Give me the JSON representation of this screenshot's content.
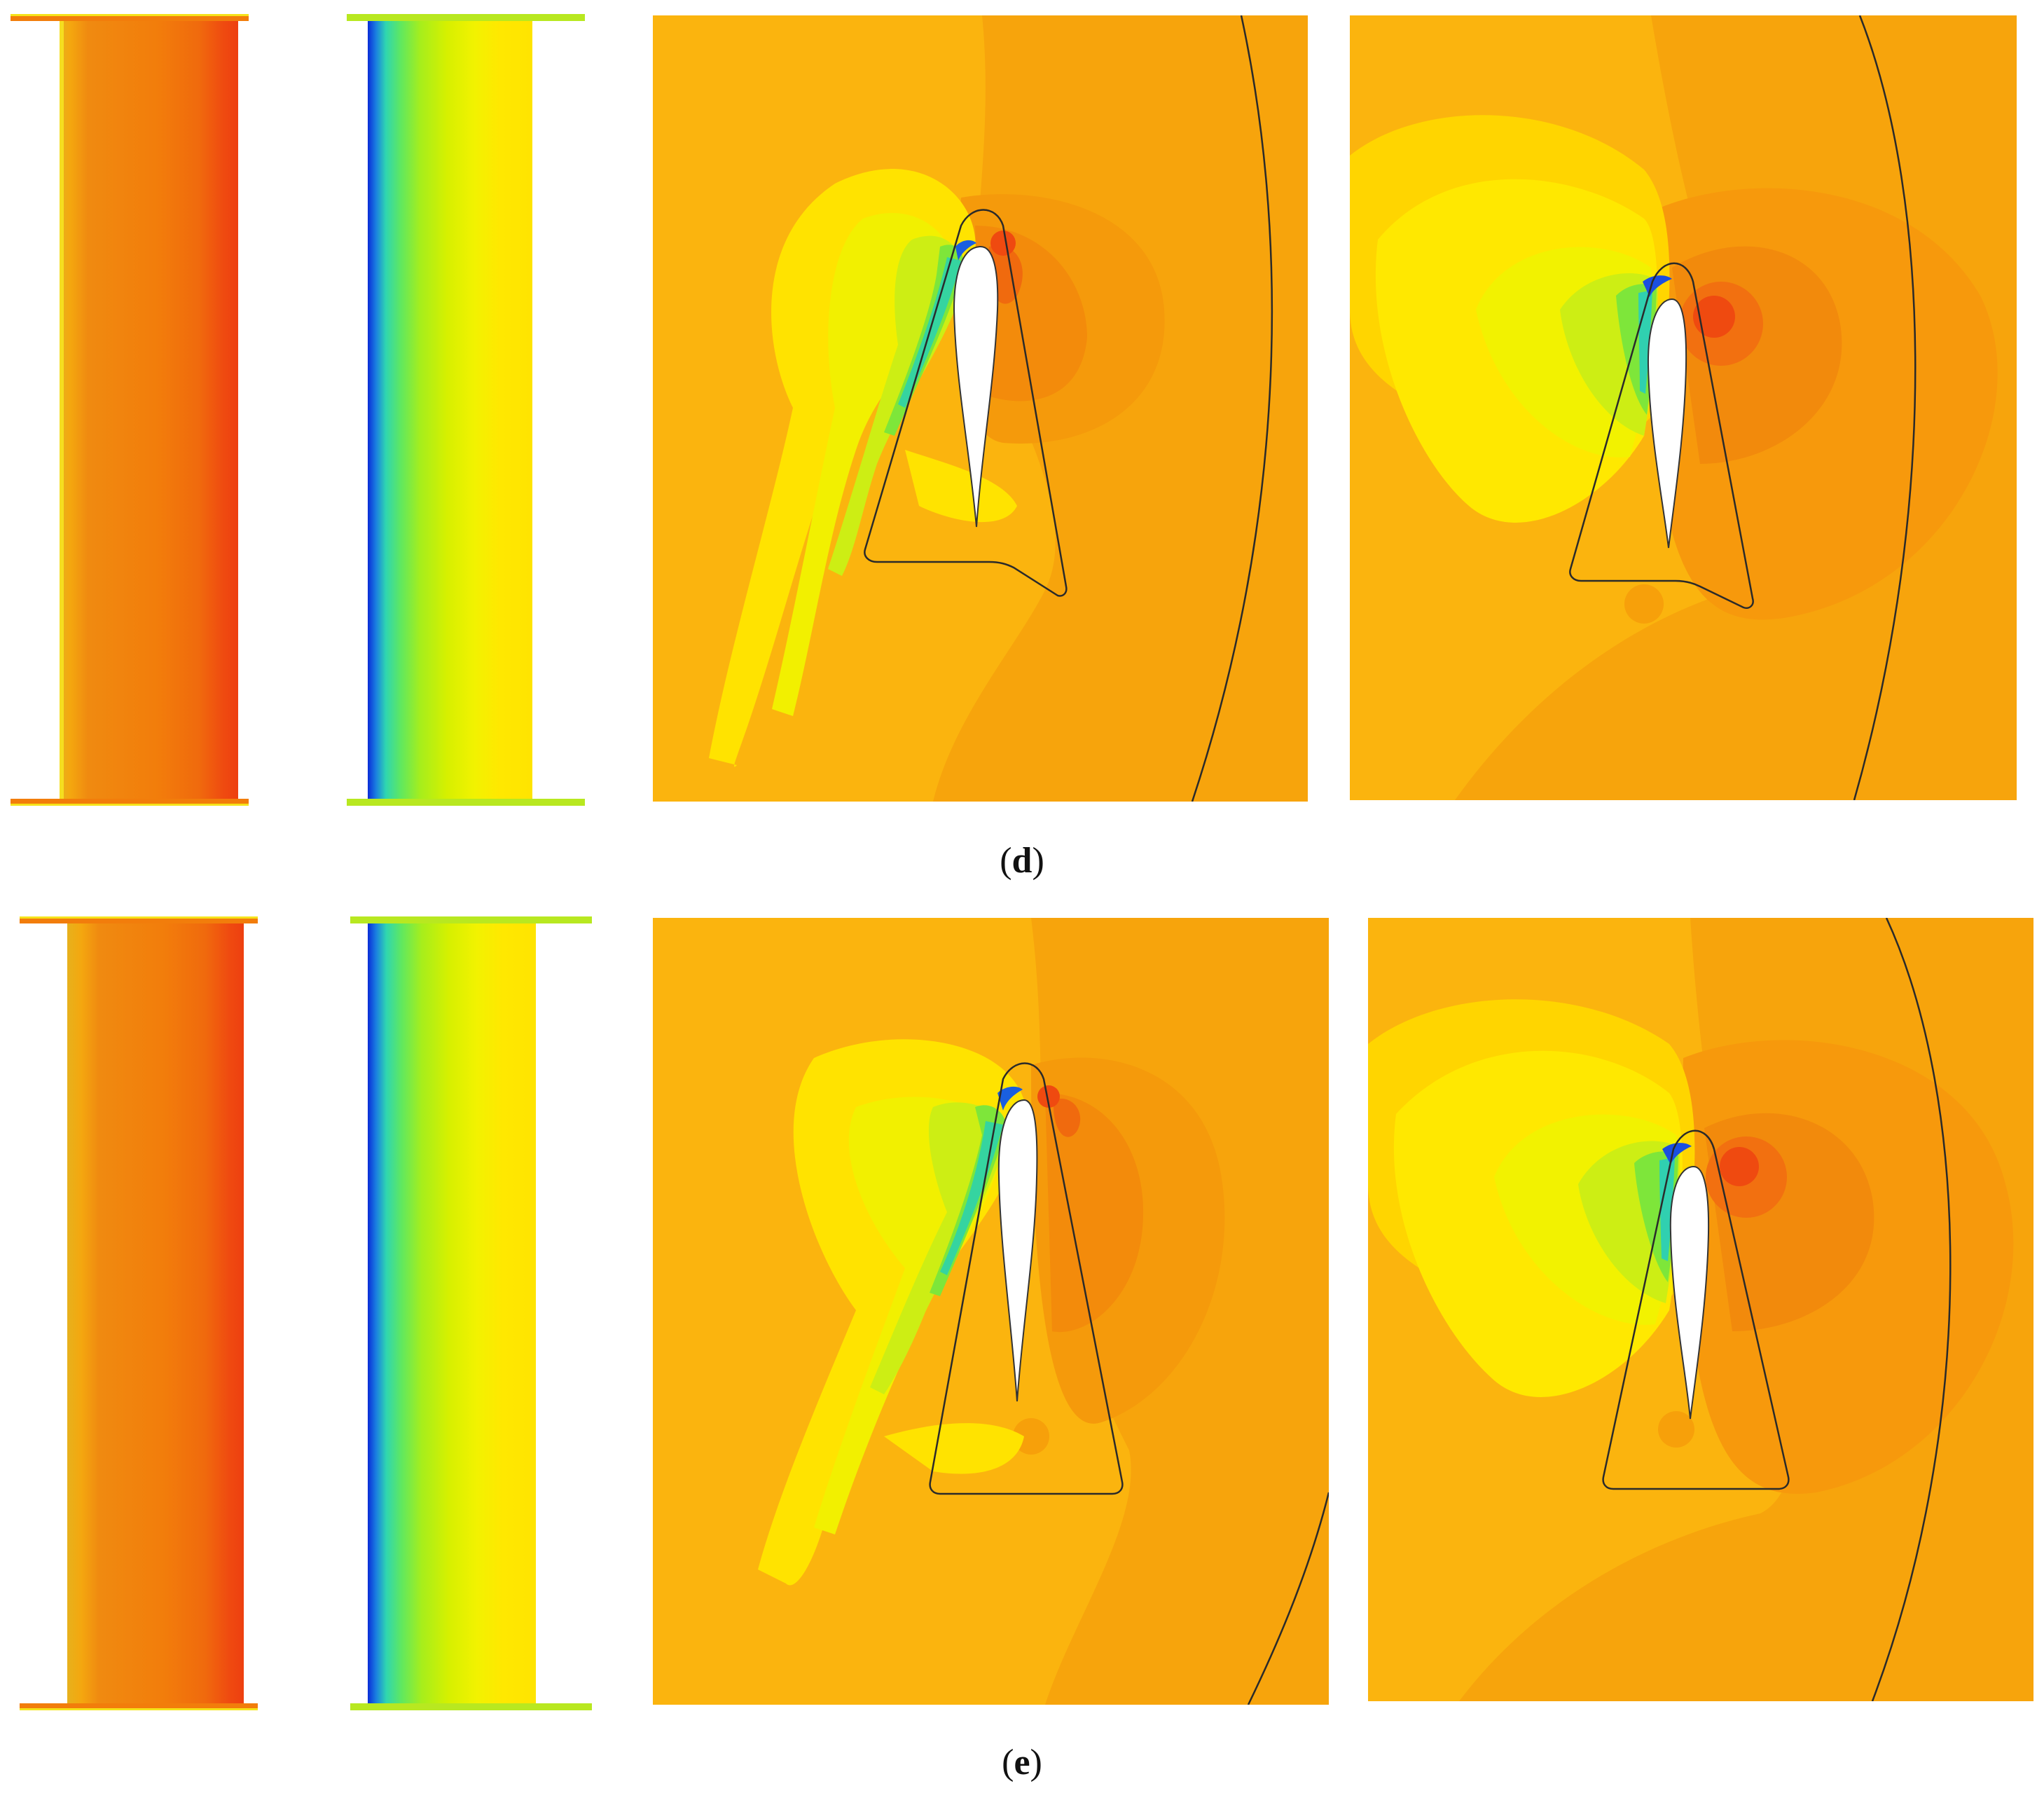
{
  "figure": {
    "rows": [
      {
        "caption": {
          "open": "(",
          "label": "d",
          "close": ")"
        }
      },
      {
        "caption": {
          "open": "(",
          "label": "e",
          "close": ")"
        }
      }
    ]
  },
  "palette": {
    "background": "#ffffff",
    "field_base": "#fbb40e",
    "field_dark": "#f7a00a",
    "high_pressure": "#f27d0b",
    "peak": "#f04a0f",
    "mid": "#ffee00",
    "light": "#f5f200",
    "low": "#9bee20",
    "lowest": "#0a2cd8",
    "outline": "#2a2a2a"
  }
}
